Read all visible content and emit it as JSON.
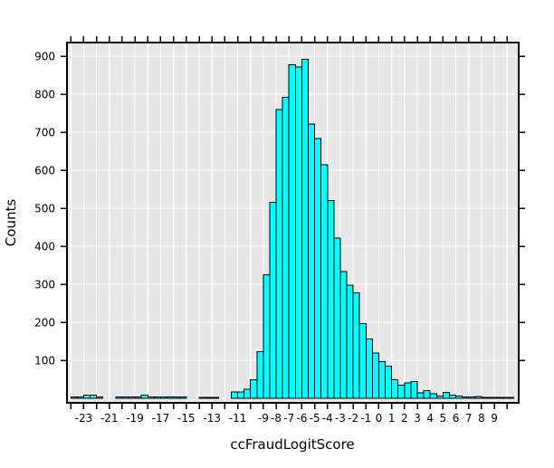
{
  "figure": {
    "background": "#ffffff",
    "title": ""
  },
  "chart_data": {
    "type": "bar",
    "subtype": "histogram",
    "title": "",
    "xlabel": "ccFraudLogitScore",
    "ylabel": "Counts",
    "bin_width": 0.5,
    "xlim": [
      -24.3,
      10.9
    ],
    "ylim": [
      0,
      936
    ],
    "grid": {
      "vertical_every": 1,
      "horizontal_every": 100,
      "visible": true
    },
    "legend": null,
    "x_tick_step": 1,
    "x_tick_range": [
      -24,
      10
    ],
    "x_tick_labels": [
      -23,
      -21,
      -19,
      -17,
      -15,
      -13,
      -11,
      -9,
      -8,
      -7,
      -6,
      -5,
      -4,
      -3,
      -2,
      -1,
      0,
      1,
      2,
      3,
      4,
      5,
      6,
      7,
      8,
      9
    ],
    "y_tick_labels": [
      100,
      200,
      300,
      400,
      500,
      600,
      700,
      800,
      900
    ],
    "colors": {
      "bar_fill": "#00ffff",
      "bar_border": "#000000",
      "plot_bg": "#e7e7e7",
      "grid": "#ffffff",
      "axis": "#000000",
      "text": "#000000"
    },
    "bins": [
      [
        -24,
        3
      ],
      [
        -23.5,
        3
      ],
      [
        -23,
        8
      ],
      [
        -22.5,
        8
      ],
      [
        -22,
        3
      ],
      [
        -20.5,
        3
      ],
      [
        -20,
        3
      ],
      [
        -19.5,
        3
      ],
      [
        -19,
        3
      ],
      [
        -18.5,
        8
      ],
      [
        -18,
        4
      ],
      [
        -17.5,
        3
      ],
      [
        -17,
        3
      ],
      [
        -16.5,
        3
      ],
      [
        -16,
        3
      ],
      [
        -15.5,
        3
      ],
      [
        -14,
        2
      ],
      [
        -13.5,
        2
      ],
      [
        -13,
        2
      ],
      [
        -11.5,
        17
      ],
      [
        -11,
        17
      ],
      [
        -10.5,
        24
      ],
      [
        -10,
        49
      ],
      [
        -9.5,
        123
      ],
      [
        -9,
        325
      ],
      [
        -8.5,
        516
      ],
      [
        -8,
        760
      ],
      [
        -7.5,
        792
      ],
      [
        -7,
        878
      ],
      [
        -6.5,
        872
      ],
      [
        -6,
        892
      ],
      [
        -5.5,
        722
      ],
      [
        -5,
        683
      ],
      [
        -4.5,
        615
      ],
      [
        -4,
        520
      ],
      [
        -3.5,
        422
      ],
      [
        -3,
        333
      ],
      [
        -2.5,
        298
      ],
      [
        -2,
        278
      ],
      [
        -1.5,
        197
      ],
      [
        -1,
        156
      ],
      [
        -0.5,
        119
      ],
      [
        0,
        97
      ],
      [
        0.5,
        85
      ],
      [
        1,
        49
      ],
      [
        1.5,
        34
      ],
      [
        2,
        40
      ],
      [
        2.5,
        44
      ],
      [
        3,
        14
      ],
      [
        3.5,
        20
      ],
      [
        4,
        12
      ],
      [
        4.5,
        6
      ],
      [
        5,
        15
      ],
      [
        5.5,
        8
      ],
      [
        6,
        6
      ],
      [
        6.5,
        3
      ],
      [
        7,
        3
      ],
      [
        7.5,
        5
      ],
      [
        8,
        2
      ],
      [
        8.5,
        2
      ],
      [
        9,
        2
      ],
      [
        9.5,
        2
      ],
      [
        10,
        2
      ]
    ]
  }
}
